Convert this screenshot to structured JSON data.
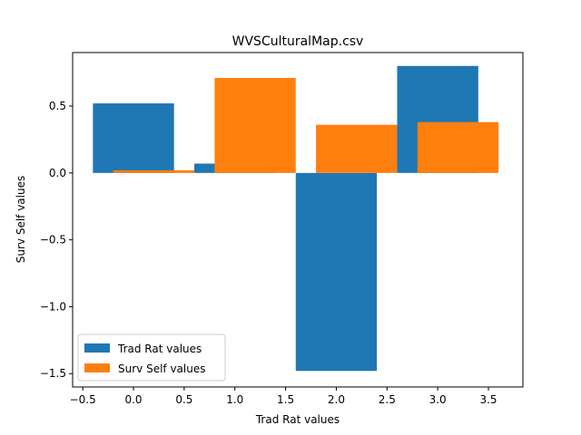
{
  "chart_data": {
    "type": "bar",
    "title": "WVSCulturalMap.csv",
    "xlabel": "Trad Rat values",
    "ylabel": "Surv Self values",
    "xlim": [
      -0.6,
      3.84
    ],
    "ylim": [
      -1.6,
      0.9
    ],
    "xticks": [
      -0.5,
      0.0,
      0.5,
      1.0,
      1.5,
      2.0,
      2.5,
      3.0,
      3.5
    ],
    "xtick_labels": [
      "−0.5",
      "0.0",
      "0.5",
      "1.0",
      "1.5",
      "2.0",
      "2.5",
      "3.0",
      "3.5"
    ],
    "yticks": [
      -1.5,
      -1.0,
      -0.5,
      0.0,
      0.5
    ],
    "ytick_labels": [
      "−1.5",
      "−1.0",
      "−0.5",
      "0.0",
      "0.5"
    ],
    "bar_width": 0.8,
    "series": [
      {
        "name": "Trad Rat values",
        "color": "#1f77b4",
        "x": [
          0,
          1,
          2,
          3
        ],
        "values": [
          0.52,
          0.07,
          -1.48,
          0.8
        ]
      },
      {
        "name": "Surv Self values",
        "color": "#ff7f0e",
        "x": [
          0.2,
          1.2,
          2.2,
          3.2
        ],
        "values": [
          0.02,
          0.71,
          0.36,
          0.38
        ]
      }
    ],
    "legend_position": "lower-left",
    "grid": false
  }
}
